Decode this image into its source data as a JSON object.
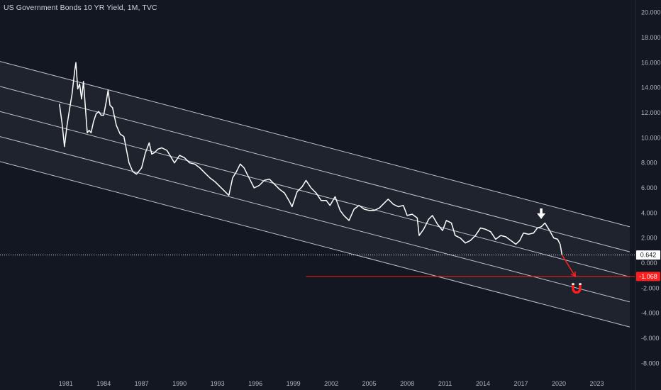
{
  "header": {
    "title": "US Government Bonds 10 YR Yield, 1M, TVC"
  },
  "colors": {
    "background": "#131722",
    "series": "#ffffff",
    "channel": "#d9dde6",
    "accent_red": "#ff1e1e",
    "axis_text": "#b2b5be"
  },
  "icons": {
    "down_arrow": "down-arrow-icon",
    "magnet": "magnet-icon"
  },
  "chart_data": {
    "type": "line",
    "title": "US Government Bonds 10 YR Yield, 1M, TVC",
    "xlabel": "",
    "ylabel": "",
    "xlim": [
      1975.8,
      2026.0
    ],
    "ylim": [
      -9.0,
      21.0
    ],
    "y_ticks": [
      "20.000",
      "18.000",
      "16.000",
      "14.000",
      "12.000",
      "10.000",
      "8.000",
      "6.000",
      "4.000",
      "2.000",
      "0.000",
      "-2.000",
      "-4.000",
      "-6.000",
      "-8.000"
    ],
    "x_ticks": [
      "1981",
      "1984",
      "1987",
      "1990",
      "1993",
      "1996",
      "1999",
      "2002",
      "2005",
      "2008",
      "2011",
      "2014",
      "2017",
      "2020",
      "2023"
    ],
    "series": [
      {
        "x": [
          1980.5,
          1980.7,
          1980.9,
          1981.1,
          1981.3,
          1981.5,
          1981.7,
          1981.8,
          1981.95,
          1982.1,
          1982.25,
          1982.4,
          1982.55,
          1982.7,
          1982.85,
          1983.0,
          1983.2,
          1983.4,
          1983.6,
          1983.8,
          1984.0,
          1984.2,
          1984.35,
          1984.5,
          1984.7,
          1985.0,
          1985.3,
          1985.6,
          1986.0,
          1986.3,
          1986.6,
          1987.0,
          1987.3,
          1987.6,
          1987.8,
          1988.0,
          1988.3,
          1988.6,
          1989.0,
          1989.3,
          1989.6,
          1990.0,
          1990.4,
          1990.8,
          1991.2,
          1991.6,
          1992.0,
          1992.4,
          1992.8,
          1993.2,
          1993.6,
          1993.9,
          1994.2,
          1994.5,
          1994.8,
          1995.1,
          1995.5,
          1995.9,
          1996.3,
          1996.7,
          1997.1,
          1997.5,
          1997.9,
          1998.3,
          1998.7,
          1998.9,
          1999.3,
          1999.7,
          2000.0,
          2000.4,
          2000.8,
          2001.2,
          2001.6,
          2001.9,
          2002.3,
          2002.7,
          2003.0,
          2003.4,
          2003.8,
          2004.2,
          2004.6,
          2005.0,
          2005.4,
          2005.8,
          2006.2,
          2006.5,
          2006.9,
          2007.3,
          2007.7,
          2008.0,
          2008.4,
          2008.8,
          2008.95,
          2009.3,
          2009.7,
          2010.0,
          2010.4,
          2010.8,
          2011.1,
          2011.5,
          2011.8,
          2012.2,
          2012.6,
          2013.0,
          2013.4,
          2013.8,
          2014.2,
          2014.6,
          2015.0,
          2015.4,
          2015.8,
          2016.2,
          2016.6,
          2016.9,
          2017.2,
          2017.6,
          2018.0,
          2018.3,
          2018.6,
          2018.9,
          2019.2,
          2019.6,
          2019.9,
          2020.1,
          2020.25
        ],
        "y": [
          12.7,
          11.2,
          9.3,
          11.0,
          12.3,
          13.5,
          15.3,
          16.0,
          13.9,
          14.3,
          13.1,
          14.5,
          12.5,
          10.4,
          10.6,
          10.4,
          11.3,
          11.9,
          12.1,
          11.8,
          11.8,
          12.9,
          13.8,
          12.6,
          12.4,
          11.0,
          10.3,
          10.1,
          8.0,
          7.3,
          7.1,
          7.6,
          8.8,
          9.6,
          8.7,
          8.8,
          9.1,
          9.2,
          9.0,
          8.5,
          8.0,
          8.6,
          8.4,
          8.0,
          7.9,
          7.6,
          7.2,
          6.8,
          6.5,
          6.1,
          5.7,
          5.4,
          6.8,
          7.3,
          7.9,
          7.6,
          6.8,
          6.0,
          6.2,
          6.6,
          6.7,
          6.3,
          5.9,
          5.6,
          4.9,
          4.5,
          5.7,
          6.1,
          6.6,
          6.0,
          5.6,
          5.0,
          5.0,
          4.6,
          5.3,
          4.2,
          3.8,
          3.4,
          4.3,
          4.6,
          4.3,
          4.2,
          4.2,
          4.4,
          4.8,
          5.1,
          4.7,
          4.5,
          4.6,
          3.8,
          3.9,
          3.6,
          2.2,
          2.7,
          3.5,
          3.8,
          3.1,
          2.6,
          3.4,
          3.2,
          2.2,
          2.0,
          1.6,
          1.8,
          2.2,
          2.8,
          2.7,
          2.5,
          1.9,
          2.2,
          2.1,
          1.8,
          1.5,
          1.8,
          2.4,
          2.3,
          2.4,
          2.8,
          2.9,
          3.2,
          2.7,
          2.0,
          1.9,
          1.5,
          0.64
        ]
      }
    ],
    "channel_lines": [
      {
        "x": [
          1975.8,
          2025.6
        ],
        "y": [
          16.1,
          2.9
        ]
      },
      {
        "x": [
          1975.8,
          2025.6
        ],
        "y": [
          14.1,
          0.9
        ]
      },
      {
        "x": [
          1975.8,
          2025.6
        ],
        "y": [
          12.1,
          -1.1
        ]
      },
      {
        "x": [
          1975.8,
          2025.6
        ],
        "y": [
          10.1,
          -3.1
        ]
      },
      {
        "x": [
          1975.8,
          2025.6
        ],
        "y": [
          8.1,
          -5.1
        ]
      }
    ],
    "projection": {
      "x": [
        2020.25,
        2021.3
      ],
      "y": [
        0.64,
        -1.07
      ]
    },
    "target_level": {
      "value": -1.068,
      "label": "-1.068",
      "x_start": 2000.0
    },
    "last_value": {
      "value": 0.642,
      "label": "0.642"
    },
    "annotations": {
      "arrow_x": 2018.6,
      "arrow_y": 3.8,
      "magnet_x": 2021.4,
      "magnet_y": -2.0
    },
    "grid": false,
    "legend": "none"
  }
}
